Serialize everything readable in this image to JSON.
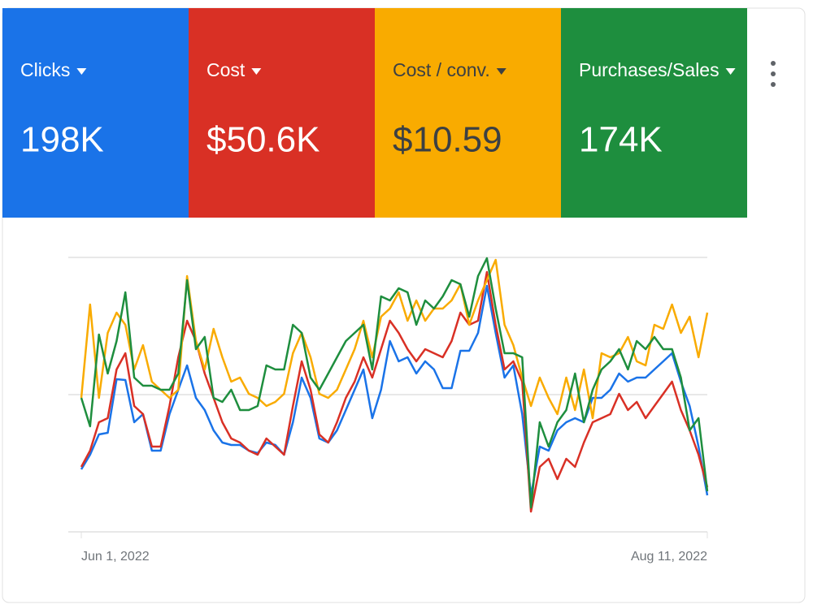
{
  "cards": [
    {
      "label": "Clicks",
      "value": "198K",
      "color": "#1a73e8",
      "text_color": "#ffffff"
    },
    {
      "label": "Cost",
      "value": "$50.6K",
      "color": "#d93025",
      "text_color": "#ffffff"
    },
    {
      "label": "Cost / conv.",
      "value": "$10.59",
      "color": "#f9ab00",
      "text_color": "#3c4043"
    },
    {
      "label": "Purchases/Sales",
      "value": "174K",
      "color": "#1e8e3e",
      "text_color": "#ffffff"
    }
  ],
  "chart_data": {
    "type": "line",
    "categories": [
      "Jun 1, 2022",
      null,
      null,
      null,
      null,
      null,
      null,
      null,
      null,
      null,
      null,
      null,
      null,
      null,
      null,
      null,
      null,
      null,
      null,
      null,
      null,
      null,
      null,
      null,
      null,
      null,
      null,
      null,
      null,
      null,
      null,
      null,
      null,
      null,
      null,
      null,
      null,
      null,
      null,
      null,
      null,
      null,
      null,
      null,
      null,
      null,
      null,
      null,
      null,
      null,
      null,
      null,
      null,
      null,
      null,
      null,
      null,
      null,
      null,
      null,
      null,
      null,
      null,
      null,
      null,
      null,
      null,
      null,
      null,
      null,
      null,
      "Aug 11, 2022"
    ],
    "series": [
      {
        "color": "#1a73e8",
        "values": [
          77,
          95,
          120,
          122,
          188,
          187,
          135,
          145,
          100,
          100,
          145,
          175,
          205,
          165,
          150,
          125,
          110,
          107,
          107,
          100,
          97,
          110,
          107,
          95,
          135,
          190,
          165,
          115,
          110,
          125,
          150,
          175,
          200,
          140,
          175,
          235,
          210,
          215,
          195,
          210,
          200,
          177,
          177,
          223,
          223,
          245,
          303,
          245,
          190,
          205,
          145,
          45,
          105,
          100,
          125,
          135,
          140,
          135,
          165,
          165,
          175,
          195,
          185,
          190,
          190,
          200,
          210,
          220,
          185,
          155,
          105,
          45
        ]
      },
      {
        "color": "#d93025",
        "values": [
          80,
          100,
          135,
          140,
          200,
          220,
          155,
          145,
          105,
          105,
          155,
          215,
          260,
          235,
          195,
          165,
          135,
          115,
          110,
          100,
          95,
          115,
          105,
          95,
          155,
          210,
          175,
          120,
          110,
          135,
          165,
          185,
          215,
          190,
          225,
          260,
          245,
          225,
          210,
          225,
          220,
          215,
          235,
          270,
          255,
          260,
          320,
          255,
          200,
          210,
          185,
          25,
          80,
          90,
          65,
          90,
          80,
          110,
          135,
          140,
          145,
          170,
          150,
          160,
          140,
          155,
          170,
          185,
          150,
          125,
          95,
          55
        ]
      },
      {
        "color": "#f9ab00",
        "values": [
          165,
          280,
          165,
          245,
          270,
          255,
          200,
          230,
          185,
          175,
          165,
          175,
          315,
          235,
          200,
          250,
          215,
          185,
          190,
          170,
          165,
          155,
          160,
          170,
          220,
          245,
          215,
          170,
          165,
          175,
          200,
          225,
          260,
          215,
          265,
          275,
          295,
          260,
          285,
          260,
          275,
          275,
          285,
          305,
          255,
          285,
          310,
          335,
          255,
          230,
          190,
          155,
          190,
          165,
          145,
          190,
          150,
          200,
          140,
          220,
          215,
          220,
          240,
          210,
          205,
          255,
          250,
          280,
          245,
          265,
          215,
          270
        ]
      },
      {
        "color": "#1e8e3e",
        "values": [
          165,
          130,
          243,
          195,
          235,
          295,
          190,
          180,
          180,
          175,
          175,
          195,
          310,
          225,
          240,
          165,
          160,
          175,
          150,
          150,
          155,
          205,
          200,
          200,
          255,
          245,
          190,
          175,
          195,
          215,
          235,
          245,
          255,
          200,
          290,
          285,
          300,
          295,
          255,
          285,
          275,
          290,
          310,
          305,
          265,
          315,
          337,
          275,
          220,
          220,
          215,
          30,
          135,
          105,
          135,
          150,
          195,
          135,
          175,
          200,
          210,
          225,
          200,
          235,
          225,
          240,
          225,
          225,
          190,
          125,
          140,
          50
        ]
      }
    ],
    "ylim": [
      0,
      338
    ],
    "grid": true
  }
}
